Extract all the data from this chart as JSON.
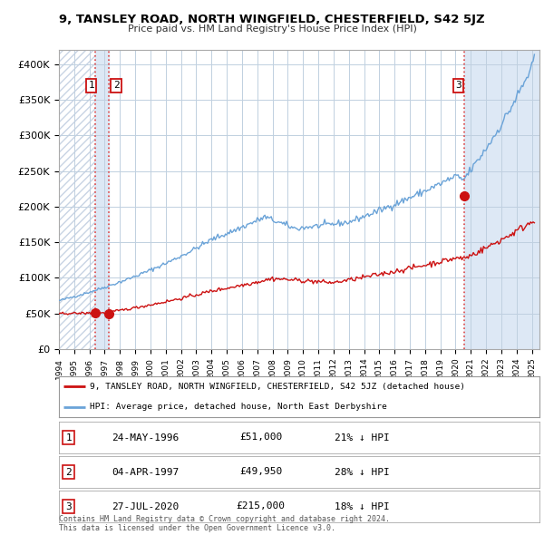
{
  "title": "9, TANSLEY ROAD, NORTH WINGFIELD, CHESTERFIELD, S42 5JZ",
  "subtitle": "Price paid vs. HM Land Registry's House Price Index (HPI)",
  "xlim": [
    1994.0,
    2025.5
  ],
  "ylim": [
    0,
    420000
  ],
  "yticks": [
    0,
    50000,
    100000,
    150000,
    200000,
    250000,
    300000,
    350000,
    400000
  ],
  "ytick_labels": [
    "£0",
    "£50K",
    "£100K",
    "£150K",
    "£200K",
    "£250K",
    "£300K",
    "£350K",
    "£400K"
  ],
  "xtick_years": [
    1994,
    1995,
    1996,
    1997,
    1998,
    1999,
    2000,
    2001,
    2002,
    2003,
    2004,
    2005,
    2006,
    2007,
    2008,
    2009,
    2010,
    2011,
    2012,
    2013,
    2014,
    2015,
    2016,
    2017,
    2018,
    2019,
    2020,
    2021,
    2022,
    2023,
    2024,
    2025
  ],
  "sale_dates": [
    1996.38,
    1997.25,
    2020.57
  ],
  "sale_prices": [
    51000,
    49950,
    215000
  ],
  "sale_labels": [
    "1",
    "2",
    "3"
  ],
  "vline_color": "#dd4444",
  "vline_style": ":",
  "shade_between_color": "#dde8f5",
  "shade_right_color": "#dde8f5",
  "hatch_color": "#c8d4e4",
  "legend_line1": "9, TANSLEY ROAD, NORTH WINGFIELD, CHESTERFIELD, S42 5JZ (detached house)",
  "legend_line2": "HPI: Average price, detached house, North East Derbyshire",
  "red_line_color": "#cc1111",
  "blue_line_color": "#6aa3d8",
  "table_rows": [
    [
      "1",
      "24-MAY-1996",
      "£51,000",
      "21% ↓ HPI"
    ],
    [
      "2",
      "04-APR-1997",
      "£49,950",
      "28% ↓ HPI"
    ],
    [
      "3",
      "27-JUL-2020",
      "£215,000",
      "18% ↓ HPI"
    ]
  ],
  "footer": "Contains HM Land Registry data © Crown copyright and database right 2024.\nThis data is licensed under the Open Government Licence v3.0.",
  "bg_color": "#ffffff",
  "plot_bg_color": "#ffffff",
  "grid_color": "#c0d0e0"
}
